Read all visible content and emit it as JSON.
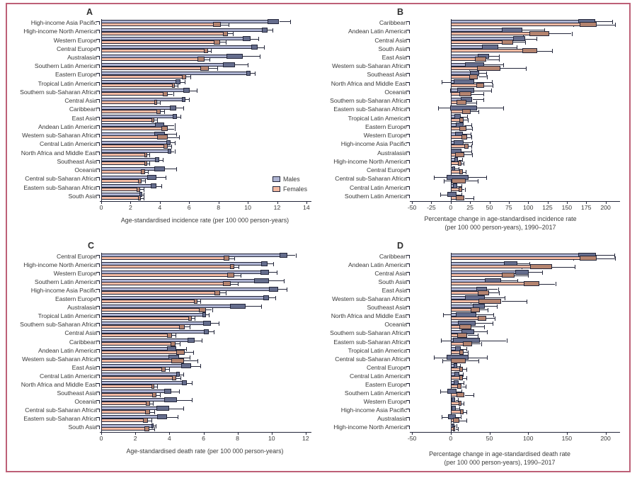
{
  "figure": {
    "legend": {
      "males_label": "Males",
      "females_label": "Females"
    },
    "colors": {
      "male_fill": "#aeb4d2",
      "male_box": "#656d8d",
      "female_fill": "#f2b9a1",
      "female_box": "#b5846f",
      "line": "#23263a",
      "text": "#3b3b3b",
      "border": "#bd6077",
      "background": "#ffffff"
    }
  },
  "chart_data": [
    {
      "panel": "A",
      "type": "bar",
      "orientation": "horizontal",
      "title": "A",
      "xlabel": "Age-standardised incidence rate (per 100 000 person-years)",
      "xlim": [
        0,
        14.15
      ],
      "xticks": [
        0,
        2,
        4,
        6,
        8,
        10,
        12,
        14
      ],
      "legend_position": "inside-right",
      "series_names": [
        "Males",
        "Females"
      ],
      "value_format": "[mean, lower_UI, upper_UI]",
      "regions": [
        "High-income Asia Pacific",
        "High-income North America",
        "Western Europe",
        "Central Europe",
        "Australasia",
        "Southern Latin America",
        "Eastern Europe",
        "Tropical Latin America",
        "Southern sub-Saharan Africa",
        "Central Asia",
        "Caribbean",
        "East Asia",
        "Andean Latin America",
        "Western sub-Saharan Africa",
        "Central Latin America",
        "North Africa and Middle East",
        "Southeast Asia",
        "Oceania",
        "Central sub-Saharan Africa",
        "Eastern sub-Saharan Africa",
        "South Asia"
      ],
      "males": [
        [
          11.6,
          11.0,
          12.9
        ],
        [
          11.1,
          10.7,
          11.7
        ],
        [
          9.8,
          9.4,
          10.7
        ],
        [
          10.4,
          10.0,
          11.1
        ],
        [
          8.8,
          8.2,
          10.8
        ],
        [
          8.5,
          8.0,
          10.0
        ],
        [
          10.0,
          9.7,
          10.5
        ],
        [
          5.2,
          4.9,
          5.7
        ],
        [
          5.7,
          5.4,
          6.5
        ],
        [
          5.6,
          5.4,
          6.0
        ],
        [
          4.8,
          4.5,
          5.6
        ],
        [
          5.0,
          4.7,
          5.4
        ],
        [
          3.8,
          3.5,
          5.0
        ],
        [
          3.8,
          3.4,
          5.1
        ],
        [
          4.5,
          4.3,
          5.0
        ],
        [
          4.6,
          4.4,
          5.0
        ],
        [
          3.8,
          3.5,
          4.2
        ],
        [
          3.8,
          3.3,
          5.1
        ],
        [
          3.3,
          2.9,
          4.4
        ],
        [
          3.5,
          3.2,
          4.1
        ],
        [
          2.7,
          2.5,
          2.9
        ]
      ],
      "females": [
        [
          7.8,
          7.4,
          8.7
        ],
        [
          8.4,
          8.1,
          9.0
        ],
        [
          7.8,
          7.5,
          8.5
        ],
        [
          7.1,
          6.8,
          7.5
        ],
        [
          6.8,
          6.2,
          7.4
        ],
        [
          6.9,
          6.5,
          7.9
        ],
        [
          5.6,
          5.4,
          6.1
        ],
        [
          4.9,
          4.7,
          5.2
        ],
        [
          4.3,
          4.1,
          4.9
        ],
        [
          3.7,
          3.5,
          4.0
        ],
        [
          3.9,
          3.6,
          4.3
        ],
        [
          3.5,
          3.3,
          3.8
        ],
        [
          4.2,
          3.9,
          5.0
        ],
        [
          4.0,
          3.5,
          5.3
        ],
        [
          4.35,
          4.15,
          4.8
        ],
        [
          3.0,
          2.85,
          3.3
        ],
        [
          3.0,
          2.8,
          3.3
        ],
        [
          2.8,
          2.5,
          3.2
        ],
        [
          2.6,
          2.4,
          3.0
        ],
        [
          2.5,
          2.3,
          2.9
        ],
        [
          2.6,
          2.4,
          2.9
        ]
      ]
    },
    {
      "panel": "B",
      "type": "bar",
      "orientation": "horizontal",
      "title": "B",
      "xlabel": "Percentage change in age-standardised incidence rate\n(per 100 000 person-years), 1990–2017",
      "xlim": [
        -51,
        215
      ],
      "xticks": [
        -50,
        -25,
        0,
        25,
        50,
        75,
        100,
        125,
        150,
        175,
        200
      ],
      "series_names": [
        "Males",
        "Females"
      ],
      "value_format": "[mean, lower_UI, upper_UI]",
      "regions": [
        "Caribbean",
        "Andean Latin America",
        "Central Asia",
        "South Asia",
        "East Asia",
        "Western sub-Saharan Africa",
        "Southeast Asia",
        "North Africa and Middle East",
        "Oceania",
        "Southern sub-Saharan Africa",
        "Eastern sub-Saharan Africa",
        "Tropical Latin America",
        "Eastern Europe",
        "Western Europe",
        "High-income Asia Pacific",
        "Australasia",
        "High-income North America",
        "Central Europe",
        "Central sub-Saharan Africa",
        "Central Latin America",
        "Southern Latin America"
      ],
      "males": [
        [
          170,
          157,
          209
        ],
        [
          72,
          58,
          121
        ],
        [
          85,
          75,
          111
        ],
        [
          45,
          33,
          85
        ],
        [
          40,
          28,
          62
        ],
        [
          25,
          9,
          68
        ],
        [
          30,
          18,
          46
        ],
        [
          14,
          -12,
          53
        ],
        [
          15,
          -1,
          52
        ],
        [
          18,
          5,
          42
        ],
        [
          9,
          -16,
          68
        ],
        [
          7,
          1,
          21
        ],
        [
          10,
          2,
          27
        ],
        [
          8,
          2,
          26
        ],
        [
          9,
          -4,
          28
        ],
        [
          5,
          -7,
          27
        ],
        [
          6,
          2,
          15
        ],
        [
          3,
          0,
          10
        ],
        [
          6,
          -22,
          46
        ],
        [
          5,
          0,
          14
        ],
        [
          2,
          -14,
          14
        ]
      ],
      "females": [
        [
          172,
          158,
          212
        ],
        [
          107,
          93,
          156
        ],
        [
          70,
          60,
          96
        ],
        [
          97,
          85,
          131
        ],
        [
          35,
          26,
          62
        ],
        [
          40,
          24,
          97
        ],
        [
          27,
          19,
          47
        ],
        [
          36,
          28,
          54
        ],
        [
          15,
          5,
          42
        ],
        [
          11,
          2,
          33
        ],
        [
          18,
          10,
          36
        ],
        [
          13,
          8,
          22
        ],
        [
          14,
          7,
          28
        ],
        [
          17,
          10,
          27
        ],
        [
          20,
          13,
          27
        ],
        [
          10,
          0,
          28
        ],
        [
          11,
          7,
          17
        ],
        [
          13,
          9,
          19
        ],
        [
          8,
          -9,
          35
        ],
        [
          12,
          8,
          18
        ],
        [
          10,
          2,
          29
        ]
      ]
    },
    {
      "panel": "C",
      "type": "bar",
      "orientation": "horizontal",
      "title": "C",
      "xlabel": "Age-standardised death rate (per 100 000 person-years)",
      "xlim": [
        0,
        12.17
      ],
      "xticks": [
        0,
        2,
        4,
        6,
        8,
        10,
        12
      ],
      "series_names": [
        "Males",
        "Females"
      ],
      "value_format": "[mean, lower_UI, upper_UI]",
      "regions": [
        "Central Europe",
        "High-income North America",
        "Western Europe",
        "Southern Latin America",
        "High-income Asia Pacific",
        "Eastern Europe",
        "Australasia",
        "Tropical Latin America",
        "Southern sub-Saharan Africa",
        "Central Asia",
        "Caribbean",
        "Andean Latin America",
        "Western sub-Saharan Africa",
        "East Asia",
        "Central Latin America",
        "North Africa and Middle East",
        "Southeast Asia",
        "Oceania",
        "Central sub-Saharan Africa",
        "Eastern sub-Saharan Africa",
        "South Asia"
      ],
      "males": [
        [
          10.6,
          10.3,
          11.4
        ],
        [
          9.5,
          9.2,
          10.1
        ],
        [
          9.5,
          9.1,
          10.3
        ],
        [
          9.2,
          8.6,
          10.7
        ],
        [
          10.0,
          9.6,
          10.9
        ],
        [
          9.6,
          9.4,
          10.2
        ],
        [
          7.8,
          7.2,
          9.4
        ],
        [
          6.0,
          5.8,
          6.3
        ],
        [
          6.1,
          5.8,
          6.9
        ],
        [
          6.1,
          5.9,
          6.6
        ],
        [
          5.2,
          4.9,
          5.9
        ],
        [
          4.0,
          3.7,
          5.0
        ],
        [
          4.1,
          3.7,
          5.2
        ],
        [
          4.9,
          4.4,
          5.8
        ],
        [
          4.5,
          4.3,
          4.8
        ],
        [
          4.85,
          4.6,
          5.3
        ],
        [
          3.8,
          3.55,
          4.55
        ],
        [
          3.8,
          3.5,
          5.3
        ],
        [
          3.4,
          3.0,
          4.8
        ],
        [
          3.4,
          3.05,
          4.5
        ],
        [
          3.0,
          2.85,
          3.2
        ]
      ],
      "females": [
        [
          7.3,
          7.0,
          7.8
        ],
        [
          7.65,
          7.4,
          8.05
        ],
        [
          7.5,
          7.2,
          8.2
        ],
        [
          7.3,
          6.9,
          8.0
        ],
        [
          6.75,
          6.5,
          7.3
        ],
        [
          5.5,
          5.3,
          5.8
        ],
        [
          5.9,
          5.5,
          6.5
        ],
        [
          5.2,
          5.0,
          5.5
        ],
        [
          4.65,
          4.4,
          5.2
        ],
        [
          4.0,
          3.7,
          4.35
        ],
        [
          4.15,
          3.9,
          4.6
        ],
        [
          4.5,
          4.2,
          5.4
        ],
        [
          4.3,
          3.8,
          5.65
        ],
        [
          3.6,
          3.4,
          4.0
        ],
        [
          4.25,
          4.05,
          4.65
        ],
        [
          3.0,
          2.85,
          3.3
        ],
        [
          3.05,
          2.85,
          3.45
        ],
        [
          2.7,
          2.5,
          3.05
        ],
        [
          2.7,
          2.4,
          3.1
        ],
        [
          2.55,
          2.3,
          2.95
        ],
        [
          2.6,
          2.45,
          3.1
        ]
      ]
    },
    {
      "panel": "D",
      "type": "bar",
      "orientation": "horizontal",
      "title": "D",
      "xlabel": "Percentage change in age-standardised death rate\n(per 100 000 person-years), 1990–2017",
      "xlim": [
        -51,
        215
      ],
      "xticks": [
        -50,
        0,
        50,
        100,
        150,
        200
      ],
      "series_names": [
        "Males",
        "Females"
      ],
      "value_format": "[mean, lower_UI, upper_UI]",
      "regions": [
        "Caribbean",
        "Andean Latin America",
        "Central Asia",
        "South Asia",
        "East Asia",
        "Western sub-Saharan Africa",
        "Southeast Asia",
        "North Africa and Middle East",
        "Oceania",
        "Southern sub-Saharan Africa",
        "Eastern sub-Saharan Africa",
        "Tropical Latin America",
        "Central sub-Saharan Africa",
        "Central Europe",
        "Central Latin America",
        "Eastern Europe",
        "Southern Latin America",
        "Western Europe",
        "High-income Asia Pacific",
        "Australasia",
        "High-income North America"
      ],
      "males": [
        [
          170,
          156,
          211
        ],
        [
          75,
          60,
          102
        ],
        [
          88,
          77,
          118
        ],
        [
          50,
          35,
          86
        ],
        [
          37,
          27,
          61
        ],
        [
          25,
          9,
          70
        ],
        [
          33,
          22,
          60
        ],
        [
          17,
          -10,
          55
        ],
        [
          16,
          0,
          54
        ],
        [
          19,
          7,
          47
        ],
        [
          13,
          -13,
          72
        ],
        [
          8,
          2,
          20
        ],
        [
          6,
          -22,
          47
        ],
        [
          5,
          1,
          12
        ],
        [
          7,
          2,
          16
        ],
        [
          6,
          1,
          17
        ],
        [
          2,
          -14,
          14
        ],
        [
          4,
          -3,
          9
        ],
        [
          4,
          -4,
          11
        ],
        [
          2,
          -12,
          13
        ],
        [
          3,
          0,
          7
        ]
      ],
      "females": [
        [
          172,
          158,
          212
        ],
        [
          110,
          92,
          160
        ],
        [
          70,
          60,
          100
        ],
        [
          99,
          88,
          135
        ],
        [
          40,
          28,
          62
        ],
        [
          42,
          26,
          98
        ],
        [
          30,
          20,
          48
        ],
        [
          38,
          30,
          57
        ],
        [
          15,
          5,
          43
        ],
        [
          12,
          2,
          35
        ],
        [
          20,
          10,
          39
        ],
        [
          13,
          8,
          22
        ],
        [
          7,
          -11,
          36
        ],
        [
          13,
          8,
          20
        ],
        [
          13,
          9,
          20
        ],
        [
          11,
          5,
          19
        ],
        [
          10,
          3,
          29
        ],
        [
          12,
          7,
          17
        ],
        [
          14,
          9,
          20
        ],
        [
          5,
          0,
          20
        ],
        [
          4,
          1,
          9
        ]
      ]
    }
  ]
}
